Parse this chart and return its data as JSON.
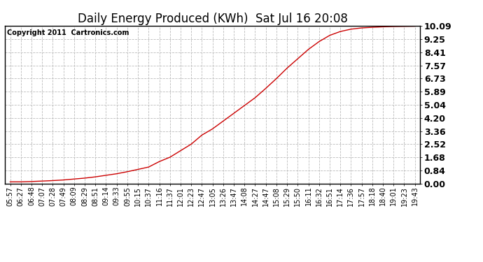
{
  "title": "Daily Energy Produced (KWh)  Sat Jul 16 20:08",
  "copyright": "Copyright 2011  Cartronics.com",
  "line_color": "#cc0000",
  "background_color": "#ffffff",
  "grid_color": "#bbbbbb",
  "yticks": [
    0.0,
    0.84,
    1.68,
    2.52,
    3.36,
    4.2,
    5.04,
    5.89,
    6.73,
    7.57,
    8.41,
    9.25,
    10.09
  ],
  "ylim": [
    0.0,
    10.09
  ],
  "x_labels": [
    "05:57",
    "06:27",
    "06:48",
    "07:07",
    "07:28",
    "07:49",
    "08:09",
    "08:29",
    "08:51",
    "09:14",
    "09:33",
    "09:55",
    "10:15",
    "10:37",
    "11:16",
    "11:37",
    "12:01",
    "12:23",
    "12:47",
    "13:05",
    "13:26",
    "13:47",
    "14:08",
    "14:27",
    "14:47",
    "15:08",
    "15:29",
    "15:50",
    "16:11",
    "16:32",
    "16:51",
    "17:14",
    "17:36",
    "17:57",
    "18:18",
    "18:40",
    "19:01",
    "19:23",
    "19:43"
  ],
  "y_values": [
    0.1,
    0.1,
    0.12,
    0.15,
    0.18,
    0.22,
    0.28,
    0.34,
    0.42,
    0.52,
    0.62,
    0.75,
    0.9,
    1.05,
    1.4,
    1.68,
    2.1,
    2.52,
    3.1,
    3.5,
    4.0,
    4.5,
    5.0,
    5.5,
    6.1,
    6.73,
    7.4,
    8.0,
    8.6,
    9.1,
    9.5,
    9.75,
    9.9,
    9.98,
    10.02,
    10.05,
    10.07,
    10.08,
    10.09
  ],
  "title_fontsize": 12,
  "copyright_fontsize": 7,
  "ytick_fontsize": 9,
  "xtick_fontsize": 7
}
